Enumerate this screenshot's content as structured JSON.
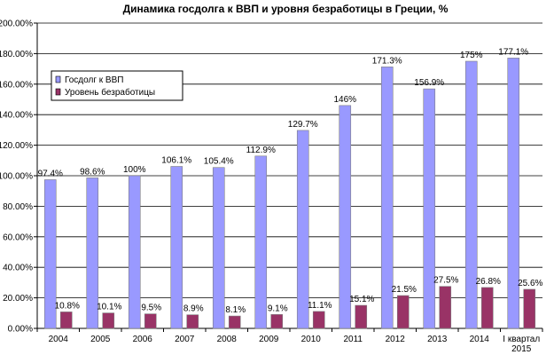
{
  "chart_data": {
    "type": "bar",
    "title": "Динамика госдолга к ВВП и уровня безработицы  в Греции, %",
    "xlabel": "",
    "ylabel": "",
    "categories": [
      [
        "2004"
      ],
      [
        "2005"
      ],
      [
        "2006"
      ],
      [
        "2007"
      ],
      [
        "2008"
      ],
      [
        "2009"
      ],
      [
        "2010"
      ],
      [
        "2011"
      ],
      [
        "2012"
      ],
      [
        "2013"
      ],
      [
        "2014"
      ],
      [
        "I квартал",
        "2015"
      ]
    ],
    "ylim": [
      0,
      200
    ],
    "y_ticks": [
      "0.00%",
      "20.00%",
      "40.00%",
      "60.00%",
      "80.00%",
      "100.00%",
      "120.00%",
      "140.00%",
      "160.00%",
      "180.00%",
      "200.00%"
    ],
    "grid": true,
    "legend_position": "top-left",
    "series": [
      {
        "name": "Госдолг к ВВП",
        "color": "#9999ff",
        "values": [
          97.4,
          98.6,
          100,
          106.1,
          105.4,
          112.9,
          129.7,
          146,
          171.3,
          156.9,
          175,
          177.1
        ],
        "labels": [
          "97.4%",
          "98.6%",
          "100%",
          "106.1%",
          "105.4%",
          "112.9%",
          "129.7%",
          "146%",
          "171.3%",
          "156.9%",
          "175%",
          "177.1%"
        ]
      },
      {
        "name": "Уровень безработицы",
        "color": "#993366",
        "values": [
          10.8,
          10.1,
          9.5,
          8.9,
          8.1,
          9.1,
          11.1,
          15.1,
          21.5,
          27.5,
          26.8,
          25.6
        ],
        "labels": [
          "10.8%",
          "10.1%",
          "9.5%",
          "8.9%",
          "8.1%",
          "9.1%",
          "11.1%",
          "15.1%",
          "21.5%",
          "27.5%",
          "26.8%",
          "25.6%"
        ]
      }
    ]
  }
}
